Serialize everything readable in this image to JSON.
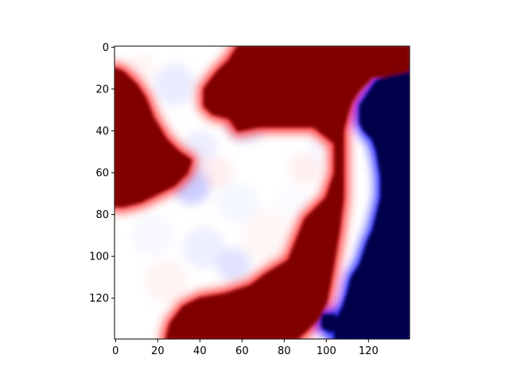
{
  "chart_data": {
    "type": "heatmap",
    "title": "",
    "xlabel": "",
    "ylabel": "",
    "colormap": "seismic",
    "colors": {
      "low": "#00004c",
      "mid": "#ffffff",
      "high": "#800000"
    },
    "xlim": [
      -0.5,
      139.5
    ],
    "ylim": [
      139.5,
      -0.5
    ],
    "y_inverted": true,
    "grid": false,
    "x_ticks": [
      0,
      20,
      40,
      60,
      80,
      100,
      120
    ],
    "y_ticks": [
      0,
      20,
      40,
      60,
      80,
      100,
      120
    ],
    "x_tick_labels": [
      "0",
      "20",
      "40",
      "60",
      "80",
      "100",
      "120"
    ],
    "y_tick_labels": [
      "0",
      "20",
      "40",
      "60",
      "80",
      "100",
      "120"
    ],
    "regions": [
      {
        "value": "high",
        "description": "dark red upper right band",
        "polygon": [
          [
            58,
            -0.5
          ],
          [
            139.5,
            -0.5
          ],
          [
            139.5,
            12
          ],
          [
            128,
            14
          ],
          [
            122,
            14
          ],
          [
            116,
            20
          ],
          [
            112,
            26
          ],
          [
            110,
            32
          ],
          [
            108,
            40
          ],
          [
            108,
            52
          ],
          [
            108,
            72
          ],
          [
            106,
            88
          ],
          [
            104,
            100
          ],
          [
            102,
            112
          ],
          [
            100,
            122
          ],
          [
            96,
            130
          ],
          [
            90,
            136
          ],
          [
            86,
            139.5
          ],
          [
            24,
            139.5
          ],
          [
            26,
            132
          ],
          [
            32,
            124
          ],
          [
            40,
            120
          ],
          [
            52,
            118
          ],
          [
            64,
            114
          ],
          [
            72,
            108
          ],
          [
            82,
            102
          ],
          [
            86,
            92
          ],
          [
            90,
            82
          ],
          [
            100,
            72
          ],
          [
            104,
            60
          ],
          [
            104,
            46
          ],
          [
            94,
            38
          ],
          [
            80,
            38
          ],
          [
            68,
            38
          ],
          [
            58,
            40
          ],
          [
            54,
            34
          ],
          [
            46,
            32
          ],
          [
            42,
            28
          ],
          [
            42,
            20
          ],
          [
            48,
            12
          ],
          [
            54,
            6
          ]
        ]
      },
      {
        "value": "high",
        "description": "dark red left region",
        "polygon": [
          [
            -0.5,
            10
          ],
          [
            4,
            12
          ],
          [
            10,
            18
          ],
          [
            14,
            24
          ],
          [
            18,
            34
          ],
          [
            24,
            44
          ],
          [
            30,
            50
          ],
          [
            36,
            54
          ],
          [
            34,
            60
          ],
          [
            28,
            66
          ],
          [
            20,
            70
          ],
          [
            12,
            74
          ],
          [
            4,
            76
          ],
          [
            -0.5,
            76
          ]
        ]
      },
      {
        "value": "low",
        "description": "dark blue right region",
        "polygon": [
          [
            139.5,
            12
          ],
          [
            139.5,
            139.5
          ],
          [
            104,
            139.5
          ],
          [
            104,
            132
          ],
          [
            108,
            124
          ],
          [
            110,
            118
          ],
          [
            112,
            110
          ],
          [
            116,
            104
          ],
          [
            118,
            98
          ],
          [
            120,
            92
          ],
          [
            122,
            88
          ],
          [
            124,
            80
          ],
          [
            126,
            72
          ],
          [
            126,
            62
          ],
          [
            124,
            50
          ],
          [
            122,
            44
          ],
          [
            118,
            40
          ],
          [
            116,
            36
          ],
          [
            116,
            28
          ],
          [
            120,
            22
          ],
          [
            124,
            16
          ],
          [
            130,
            14
          ]
        ]
      },
      {
        "value": "low",
        "description": "small dark blue patch lower right",
        "polygon": [
          [
            98,
            128
          ],
          [
            104,
            128
          ],
          [
            106,
            134
          ],
          [
            102,
            136
          ],
          [
            98,
            134
          ]
        ]
      }
    ]
  }
}
